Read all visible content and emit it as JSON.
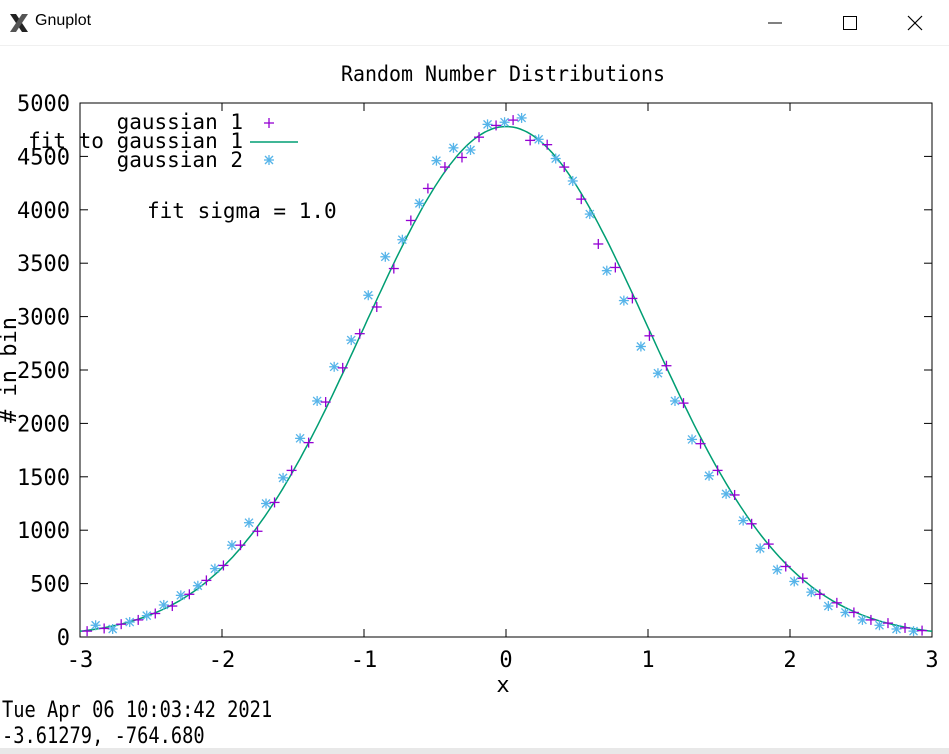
{
  "window": {
    "title": "Gnuplot",
    "icons": {
      "app": "gnuplot-x-icon",
      "minimize": "minimize-icon",
      "maximize": "maximize-icon",
      "close": "close-icon"
    }
  },
  "status": {
    "timestamp": "Tue Apr 06 10:03:42 2021",
    "coords": "-3.61279, -764.680"
  },
  "chart_data": {
    "type": "scatter",
    "title": "Random Number Distributions",
    "xlabel": "x",
    "ylabel": "# in bin",
    "xlim": [
      -3,
      3
    ],
    "ylim": [
      0,
      5000
    ],
    "xticks": [
      "-3",
      "-2",
      "-1",
      "0",
      "1",
      "2",
      "3"
    ],
    "yticks": [
      "0",
      "500",
      "1000",
      "1500",
      "2000",
      "2500",
      "3000",
      "3500",
      "4000",
      "4500",
      "5000"
    ],
    "grid": false,
    "legend_position": "top-left",
    "annotation": "fit sigma = 1.0",
    "colors": {
      "gaussian1": "#9400d3",
      "fit": "#009e73",
      "gaussian2": "#56b4e9"
    },
    "series": [
      {
        "name": "gaussian 1",
        "marker": "plus",
        "x": [
          -2.95,
          -2.83,
          -2.71,
          -2.59,
          -2.47,
          -2.35,
          -2.23,
          -2.11,
          -1.99,
          -1.87,
          -1.75,
          -1.63,
          -1.51,
          -1.39,
          -1.27,
          -1.15,
          -1.03,
          -0.91,
          -0.79,
          -0.67,
          -0.55,
          -0.43,
          -0.31,
          -0.19,
          -0.07,
          0.05,
          0.17,
          0.29,
          0.41,
          0.53,
          0.65,
          0.77,
          0.89,
          1.01,
          1.13,
          1.25,
          1.37,
          1.49,
          1.61,
          1.73,
          1.85,
          1.97,
          2.09,
          2.21,
          2.33,
          2.45,
          2.57,
          2.69,
          2.81,
          2.93
        ],
        "y": [
          55,
          80,
          120,
          160,
          220,
          290,
          400,
          530,
          670,
          860,
          990,
          1260,
          1560,
          1820,
          2200,
          2520,
          2840,
          3090,
          3450,
          3900,
          4200,
          4400,
          4490,
          4680,
          4790,
          4840,
          4650,
          4610,
          4400,
          4100,
          3680,
          3460,
          3170,
          2820,
          2540,
          2190,
          1810,
          1560,
          1330,
          1060,
          870,
          660,
          550,
          400,
          320,
          230,
          160,
          130,
          85,
          60
        ]
      },
      {
        "name": "fit to gaussian 1",
        "type": "line",
        "function": "gaussian",
        "amplitude": 4780,
        "mean": 0,
        "sigma": 1.0
      },
      {
        "name": "gaussian 2",
        "marker": "asterisk",
        "x": [
          -2.89,
          -2.77,
          -2.65,
          -2.53,
          -2.41,
          -2.29,
          -2.17,
          -2.05,
          -1.93,
          -1.81,
          -1.69,
          -1.57,
          -1.45,
          -1.33,
          -1.21,
          -1.09,
          -0.97,
          -0.85,
          -0.73,
          -0.61,
          -0.49,
          -0.37,
          -0.25,
          -0.13,
          -0.01,
          0.11,
          0.23,
          0.35,
          0.47,
          0.59,
          0.71,
          0.83,
          0.95,
          1.07,
          1.19,
          1.31,
          1.43,
          1.55,
          1.67,
          1.79,
          1.91,
          2.03,
          2.15,
          2.27,
          2.39,
          2.51,
          2.63,
          2.75,
          2.87
        ],
        "y": [
          110,
          75,
          140,
          200,
          300,
          390,
          480,
          640,
          860,
          1070,
          1250,
          1490,
          1860,
          2210,
          2530,
          2780,
          3200,
          3560,
          3720,
          4060,
          4460,
          4580,
          4560,
          4800,
          4820,
          4860,
          4660,
          4480,
          4270,
          3960,
          3430,
          3150,
          2720,
          2470,
          2210,
          1850,
          1510,
          1340,
          1090,
          830,
          630,
          520,
          420,
          290,
          230,
          160,
          110,
          75,
          55
        ]
      }
    ]
  }
}
